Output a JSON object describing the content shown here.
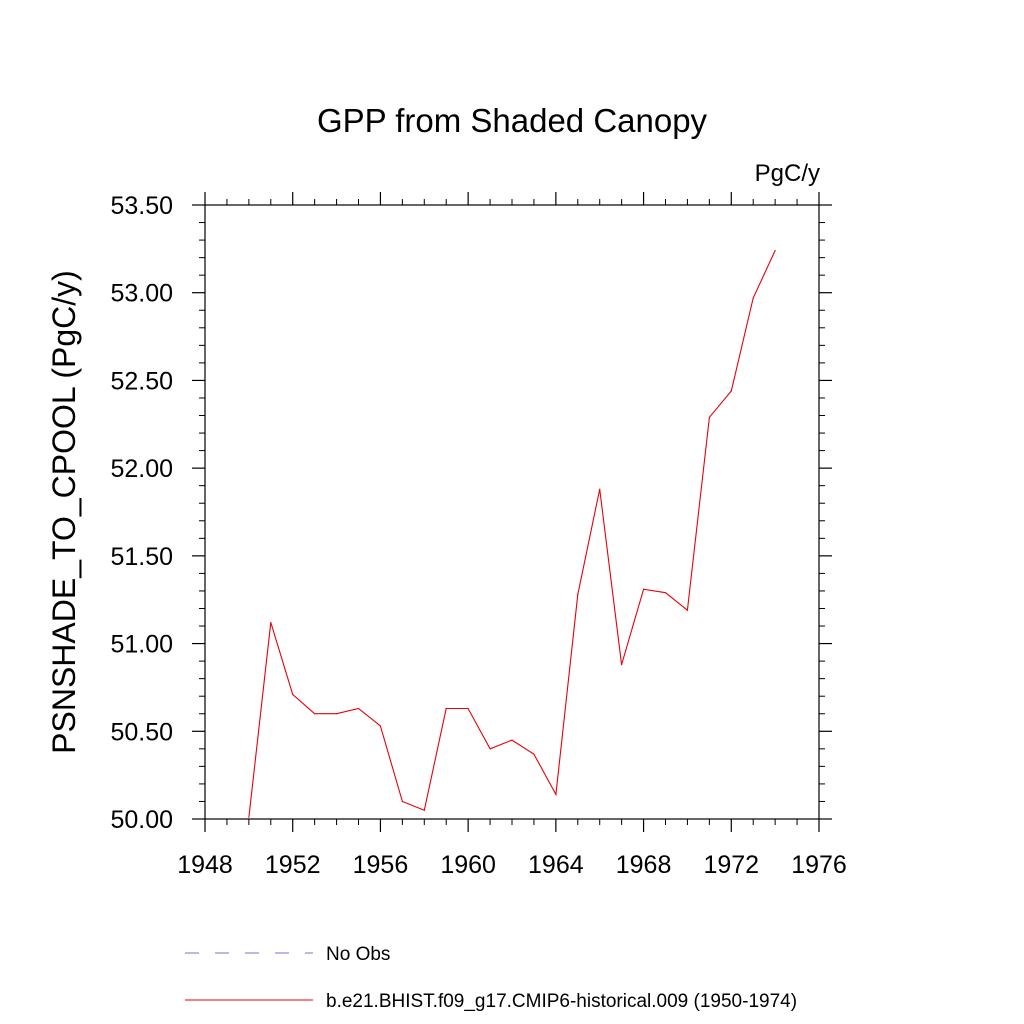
{
  "chart_data": {
    "type": "line",
    "title": "GPP from Shaded Canopy",
    "units": "PgC/y",
    "ylabel": "PSNSHADE_TO_CPOOL  (PgC/y)",
    "xlabel": "",
    "xlim": [
      1948,
      1976
    ],
    "ylim": [
      50.0,
      53.5
    ],
    "x_ticks": [
      1948,
      1952,
      1956,
      1960,
      1964,
      1968,
      1972,
      1976
    ],
    "x_tick_labels": [
      "1948",
      "1952",
      "1956",
      "1960",
      "1964",
      "1968",
      "1972",
      "1976"
    ],
    "y_ticks": [
      50.0,
      50.5,
      51.0,
      51.5,
      52.0,
      52.5,
      53.0,
      53.5
    ],
    "y_tick_labels": [
      "50.00",
      "50.50",
      "51.00",
      "51.50",
      "52.00",
      "52.50",
      "53.00",
      "53.50"
    ],
    "grid": false,
    "legend_position": "bottom",
    "series": [
      {
        "name": "No Obs",
        "color": "#7b6fd0",
        "style": "dashed",
        "x": [],
        "values": []
      },
      {
        "name": "b.e21.BHIST.f09_g17.CMIP6-historical.009 (1950-1974)",
        "color": "#e8000b",
        "style": "solid",
        "x": [
          1950,
          1951,
          1952,
          1953,
          1954,
          1955,
          1956,
          1957,
          1958,
          1959,
          1960,
          1961,
          1962,
          1963,
          1964,
          1965,
          1966,
          1967,
          1968,
          1969,
          1970,
          1971,
          1972,
          1973,
          1974
        ],
        "values": [
          50.01,
          51.12,
          50.71,
          50.6,
          50.6,
          50.63,
          50.53,
          50.1,
          50.05,
          50.63,
          50.63,
          50.4,
          50.45,
          50.37,
          50.14,
          51.28,
          51.88,
          50.88,
          51.31,
          51.29,
          51.19,
          52.29,
          52.44,
          52.97,
          53.24
        ]
      }
    ]
  }
}
